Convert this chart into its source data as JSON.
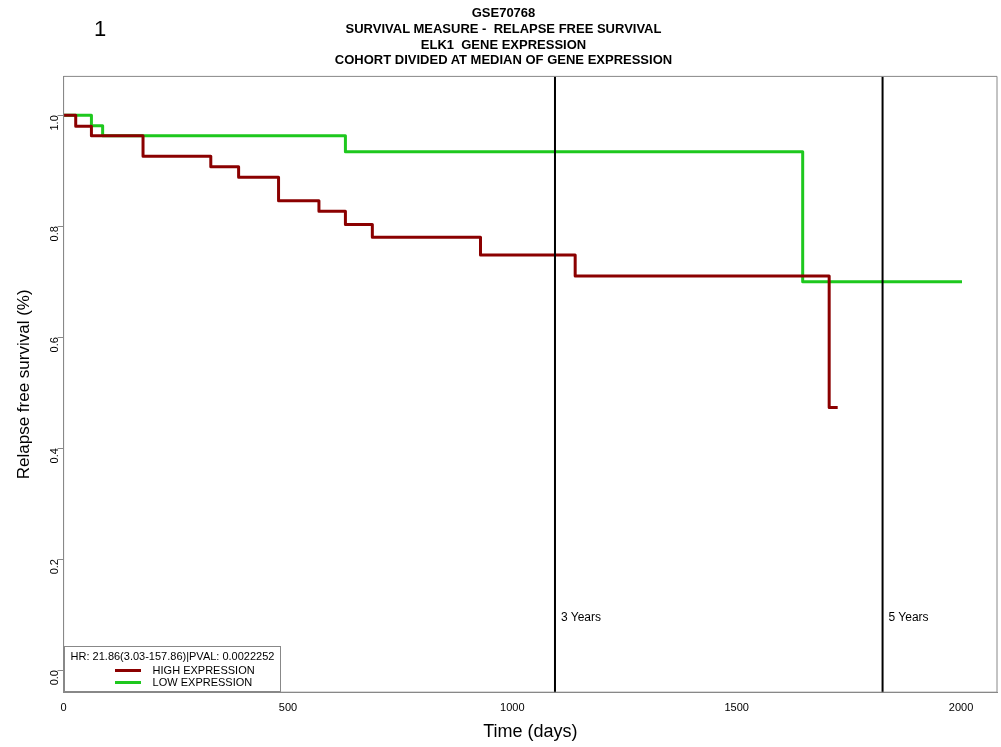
{
  "chart_data": {
    "type": "step",
    "title": "GSE70768",
    "subtitle": "SURVIVAL MEASURE -  RELAPSE FREE SURVIVAL\nELK1  GENE EXPRESSION\nCOHORT DIVIDED AT MEDIAN OF GENE EXPRESSION",
    "xlabel": "Time (days)",
    "ylabel": "Relapse free survival (%)",
    "legend_title": "HR: 21.86(3.03-157.86)|PVAL: 0.0022252",
    "annotations": [
      "1"
    ],
    "series": [
      {
        "name": "HIGH EXPRESSION",
        "color": "#8b0000",
        "x": [
          0,
          27,
          62,
          177,
          328,
          390,
          479,
          569,
          628,
          688,
          929,
          1140,
          1706,
          1725
        ],
        "values": [
          1.0,
          0.98,
          0.963,
          0.926,
          0.907,
          0.888,
          0.846,
          0.827,
          0.803,
          0.78,
          0.748,
          0.71,
          0.473,
          0.473
        ]
      },
      {
        "name": "LOW EXPRESSION",
        "color": "#1ec81e",
        "x": [
          0,
          62,
          87,
          628,
          1647,
          2002
        ],
        "values": [
          1.0,
          0.981,
          0.963,
          0.934,
          0.7,
          0.7
        ]
      }
    ],
    "xlim": [
      0,
      2080
    ],
    "xticks": [
      0,
      500,
      1000,
      1500,
      2000
    ],
    "ylim": [
      -0.04,
      1.07
    ],
    "yticks": [
      {
        "value": 0,
        "label": "0.0"
      },
      {
        "value": 0.2,
        "label": "0.2"
      },
      {
        "value": 0.4,
        "label": "0.4"
      },
      {
        "value": 0.6,
        "label": "0.6"
      },
      {
        "value": 0.8,
        "label": "0.8"
      },
      {
        "value": 1,
        "label": "1.0"
      }
    ],
    "ref_lines": [
      {
        "axis": "x",
        "value": 1095,
        "label": "3 Years",
        "color": "#000000"
      },
      {
        "axis": "x",
        "value": 1825,
        "label": "5 Years",
        "color": "#000000"
      }
    ],
    "grid": false,
    "legend": "bottom left"
  }
}
